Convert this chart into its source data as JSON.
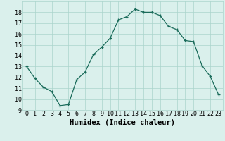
{
  "x": [
    0,
    1,
    2,
    3,
    4,
    5,
    6,
    7,
    8,
    9,
    10,
    11,
    12,
    13,
    14,
    15,
    16,
    17,
    18,
    19,
    20,
    21,
    22,
    23
  ],
  "y": [
    13,
    11.9,
    11.1,
    10.7,
    9.4,
    9.5,
    11.8,
    12.5,
    14.1,
    14.8,
    15.6,
    17.3,
    17.6,
    18.3,
    18.0,
    18.0,
    17.7,
    16.7,
    16.4,
    15.4,
    15.3,
    13.1,
    12.1,
    10.4
  ],
  "line_color": "#1a6b5a",
  "marker": "+",
  "bg_color": "#daf0ec",
  "grid_color": "#aad4cc",
  "xlabel": "Humidex (Indice chaleur)",
  "xlim": [
    -0.5,
    23.5
  ],
  "ylim": [
    9,
    19
  ],
  "yticks": [
    9,
    10,
    11,
    12,
    13,
    14,
    15,
    16,
    17,
    18
  ],
  "xticks": [
    0,
    1,
    2,
    3,
    4,
    5,
    6,
    7,
    8,
    9,
    10,
    11,
    12,
    13,
    14,
    15,
    16,
    17,
    18,
    19,
    20,
    21,
    22,
    23
  ],
  "tick_fontsize": 6,
  "xlabel_fontsize": 7.5
}
